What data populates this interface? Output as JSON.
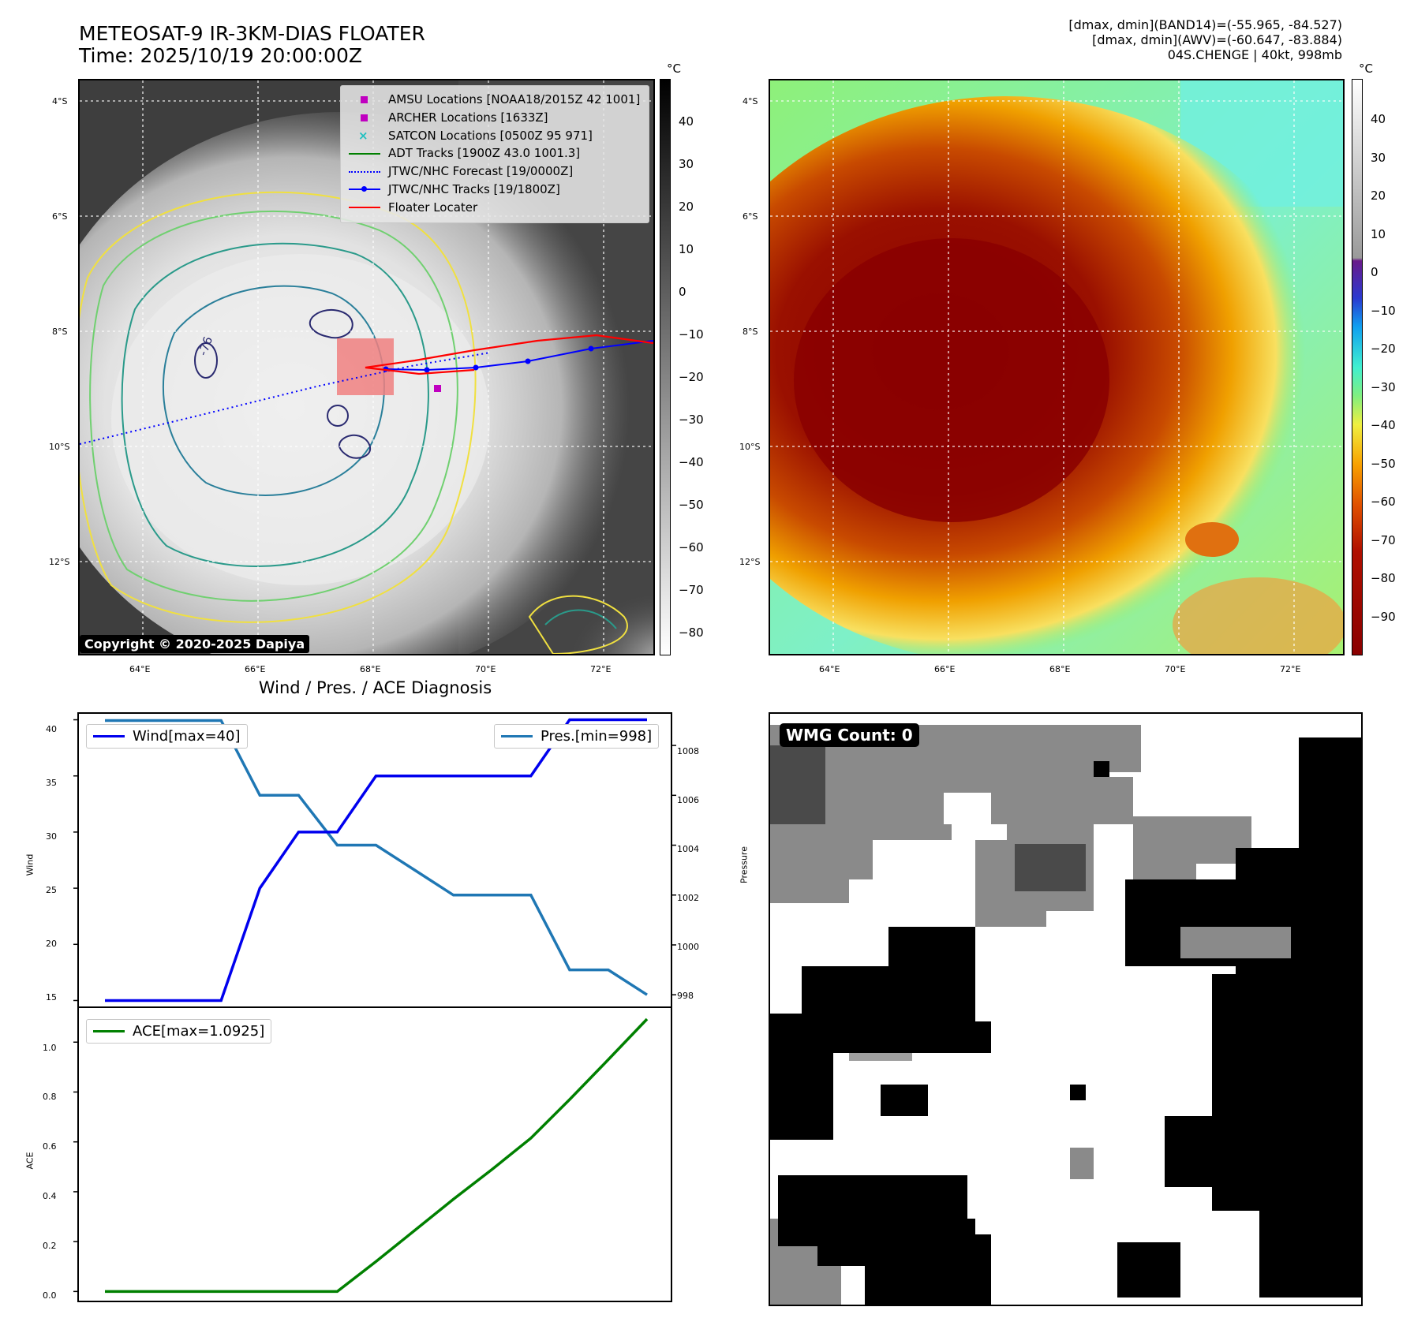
{
  "header": {
    "title_line1": "METEOSAT-9 IR-3KM-DIAS FLOATER",
    "title_line2": "Time: 2025/10/19 20:00:00Z",
    "info_line1": "[dmax, dmin](BAND14)=(-55.965, -84.527)",
    "info_line2": "[dmax, dmin](AWV)=(-60.647, -83.884)",
    "info_line3": "04S.CHENGE | 40kt, 998mb"
  },
  "ir_panel": {
    "lat_labels": [
      "4°S",
      "6°S",
      "8°S",
      "10°S",
      "12°S"
    ],
    "lon_labels": [
      "64°E",
      "66°E",
      "68°E",
      "70°E",
      "72°E"
    ],
    "colorbar_unit": "°C",
    "colorbar_ticks": [
      "40",
      "30",
      "20",
      "10",
      "0",
      "−10",
      "−20",
      "−30",
      "−40",
      "−50",
      "−60",
      "−70",
      "−80"
    ],
    "contour_labels": [
      "-76"
    ],
    "copyright": "Copyright © 2020-2025 Dapiya",
    "legend": [
      {
        "label": "AMSU Locations [NOAA18/2015Z 42 1001]",
        "marker": "square",
        "color": "#c000c0"
      },
      {
        "label": "ARCHER Locations [1633Z]",
        "marker": "square",
        "color": "#c000c0"
      },
      {
        "label": "SATCON Locations [0500Z 95 971]",
        "marker": "x",
        "color": "#20c0c0"
      },
      {
        "label": "ADT Tracks [1900Z 43.0 1001.3]",
        "marker": "line",
        "color": "#008000"
      },
      {
        "label": "JTWC/NHC Forecast [19/0000Z]",
        "marker": "dotted",
        "color": "#0000ff"
      },
      {
        "label": "JTWC/NHC Tracks [19/1800Z]",
        "marker": "line-dot",
        "color": "#0000ff"
      },
      {
        "label": "Floater Locater",
        "marker": "line",
        "color": "#ff0000"
      }
    ]
  },
  "awv_panel": {
    "lat_labels": [
      "4°S",
      "6°S",
      "8°S",
      "10°S",
      "12°S"
    ],
    "lon_labels": [
      "64°E",
      "66°E",
      "68°E",
      "70°E",
      "72°E"
    ],
    "colorbar_unit": "°C",
    "colorbar_ticks": [
      "40",
      "30",
      "20",
      "10",
      "0",
      "−10",
      "−20",
      "−30",
      "−40",
      "−50",
      "−60",
      "−70",
      "−80",
      "−90"
    ]
  },
  "diagnosis": {
    "title": "Wind / Pres. / ACE Diagnosis",
    "wind_ylabel": "Wind",
    "pres_ylabel": "Pressure",
    "ace_ylabel": "ACE",
    "wind_legend": "Wind[max=40]",
    "pres_legend": "Pres.[min=998]",
    "ace_legend": "ACE[max=1.0925]",
    "wind_ticks": [
      "40",
      "35",
      "30",
      "25",
      "20",
      "15"
    ],
    "pres_ticks": [
      "1008",
      "1006",
      "1004",
      "1002",
      "1000",
      "998"
    ],
    "ace_ticks": [
      "1.0",
      "0.8",
      "0.6",
      "0.4",
      "0.2",
      "0.0"
    ]
  },
  "wmg_panel": {
    "badge": "WMG Count: 0"
  },
  "colors": {
    "wind": "#0000ee",
    "pres": "#1f77b4",
    "ace": "#008000",
    "floater_box": "#f08080"
  },
  "chart_data": [
    {
      "type": "line",
      "title": "Wind / Pres. / ACE Diagnosis",
      "ylabel": "Wind",
      "x_index": [
        0,
        1,
        2,
        3,
        4,
        5,
        6,
        7,
        8,
        9,
        10,
        11,
        12,
        13,
        14
      ],
      "ylim": [
        14.4,
        40.6
      ],
      "series": [
        {
          "name": "Wind[max=40]",
          "values": [
            15,
            15,
            15,
            15,
            25,
            30,
            30,
            35,
            35,
            35,
            35,
            35,
            40,
            40,
            40
          ]
        }
      ]
    },
    {
      "type": "line",
      "ylabel": "Pressure",
      "x_index": [
        0,
        1,
        2,
        3,
        4,
        5,
        6,
        7,
        8,
        9,
        10,
        11,
        12,
        13,
        14
      ],
      "ylim": [
        997.5,
        1009.3
      ],
      "series": [
        {
          "name": "Pres.[min=998]",
          "values": [
            1009,
            1009,
            1009,
            1009,
            1006,
            1006,
            1004,
            1004,
            1003,
            1002,
            1002,
            1002,
            999,
            999,
            998
          ]
        }
      ]
    },
    {
      "type": "line",
      "ylabel": "ACE",
      "x_index": [
        0,
        1,
        2,
        3,
        4,
        5,
        6,
        7,
        8,
        9,
        10,
        11,
        12,
        13,
        14
      ],
      "ylim": [
        -0.04,
        1.14
      ],
      "series": [
        {
          "name": "ACE[max=1.0925]",
          "values": [
            0,
            0,
            0,
            0,
            0,
            0,
            0,
            0.12,
            0.245,
            0.37,
            0.49,
            0.615,
            0.77,
            0.93,
            1.0925
          ]
        }
      ]
    }
  ]
}
